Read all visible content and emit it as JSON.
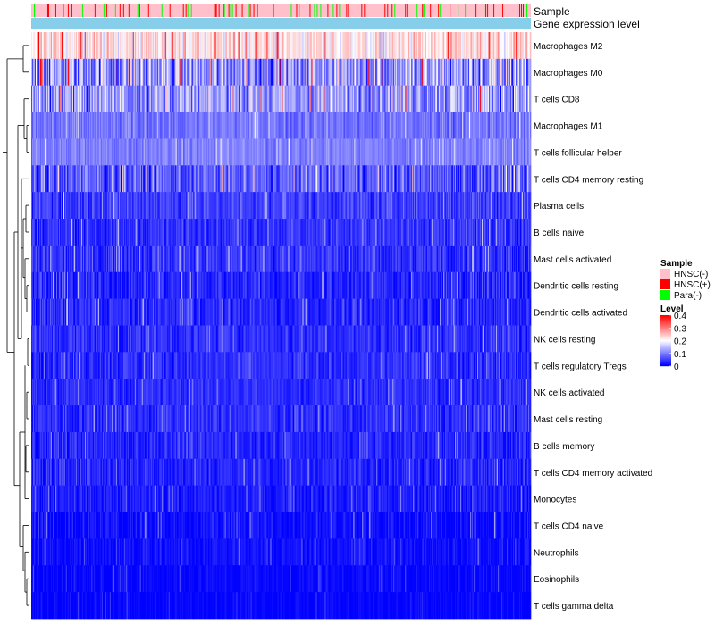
{
  "chart_data": {
    "type": "heatmap",
    "title": "",
    "annotation_tracks": [
      {
        "name": "Sample",
        "label": "Sample"
      },
      {
        "name": "Gene expression level",
        "label": "Gene expression level"
      }
    ],
    "rows": [
      {
        "label": "Macrophages M2",
        "mean": 0.22,
        "spread": 0.1
      },
      {
        "label": "Macrophages M0",
        "mean": 0.12,
        "spread": 0.18
      },
      {
        "label": "T cells CD8",
        "mean": 0.12,
        "spread": 0.14
      },
      {
        "label": "Macrophages M1",
        "mean": 0.09,
        "spread": 0.06
      },
      {
        "label": "T cells follicular helper",
        "mean": 0.1,
        "spread": 0.05
      },
      {
        "label": "T cells CD4 memory resting",
        "mean": 0.07,
        "spread": 0.12
      },
      {
        "label": "Plasma cells",
        "mean": 0.05,
        "spread": 0.07
      },
      {
        "label": "B cells naive",
        "mean": 0.04,
        "spread": 0.06
      },
      {
        "label": "Mast cells activated",
        "mean": 0.04,
        "spread": 0.07
      },
      {
        "label": "Dendritic cells resting",
        "mean": 0.03,
        "spread": 0.07
      },
      {
        "label": "Dendritic cells activated",
        "mean": 0.03,
        "spread": 0.06
      },
      {
        "label": "NK cells resting",
        "mean": 0.035,
        "spread": 0.06
      },
      {
        "label": "T cells regulatory  Tregs",
        "mean": 0.035,
        "spread": 0.06
      },
      {
        "label": "NK cells activated",
        "mean": 0.035,
        "spread": 0.05
      },
      {
        "label": "Mast cells resting",
        "mean": 0.035,
        "spread": 0.06
      },
      {
        "label": "B cells memory",
        "mean": 0.03,
        "spread": 0.06
      },
      {
        "label": "T cells CD4 memory activated",
        "mean": 0.03,
        "spread": 0.06
      },
      {
        "label": "Monocytes",
        "mean": 0.02,
        "spread": 0.05
      },
      {
        "label": "T cells CD4 naive",
        "mean": 0.01,
        "spread": 0.06
      },
      {
        "label": "Neutrophils",
        "mean": 0.01,
        "spread": 0.04
      },
      {
        "label": "Eosinophils",
        "mean": 0.003,
        "spread": 0.04
      },
      {
        "label": "T cells gamma delta",
        "mean": 0.002,
        "spread": 0.03
      }
    ],
    "n_samples": 560,
    "sample_groups": [
      {
        "label": "HNSC(-)",
        "color": "#FFC0CB",
        "share": 0.84
      },
      {
        "label": "HNSC(+)",
        "color": "#FF0000",
        "share": 0.1
      },
      {
        "label": "Para(-)",
        "color": "#00FF00",
        "share": 0.06
      }
    ],
    "gene_expression_color": "#87CEEB",
    "legend": {
      "sample_title": "Sample",
      "level_title": "Level",
      "level_ticks": [
        "0.4",
        "0.3",
        "0.2",
        "0.1",
        "0"
      ],
      "level_tick_values": [
        0.4,
        0.3,
        0.2,
        0.1,
        0
      ],
      "position": "right"
    },
    "color_scale": {
      "low": "#0000FF",
      "mid": "#FFFFFF",
      "high": "#FF0000",
      "domain": [
        0,
        0.4
      ],
      "mid_value": 0.2
    },
    "dendrogram": "rows"
  }
}
